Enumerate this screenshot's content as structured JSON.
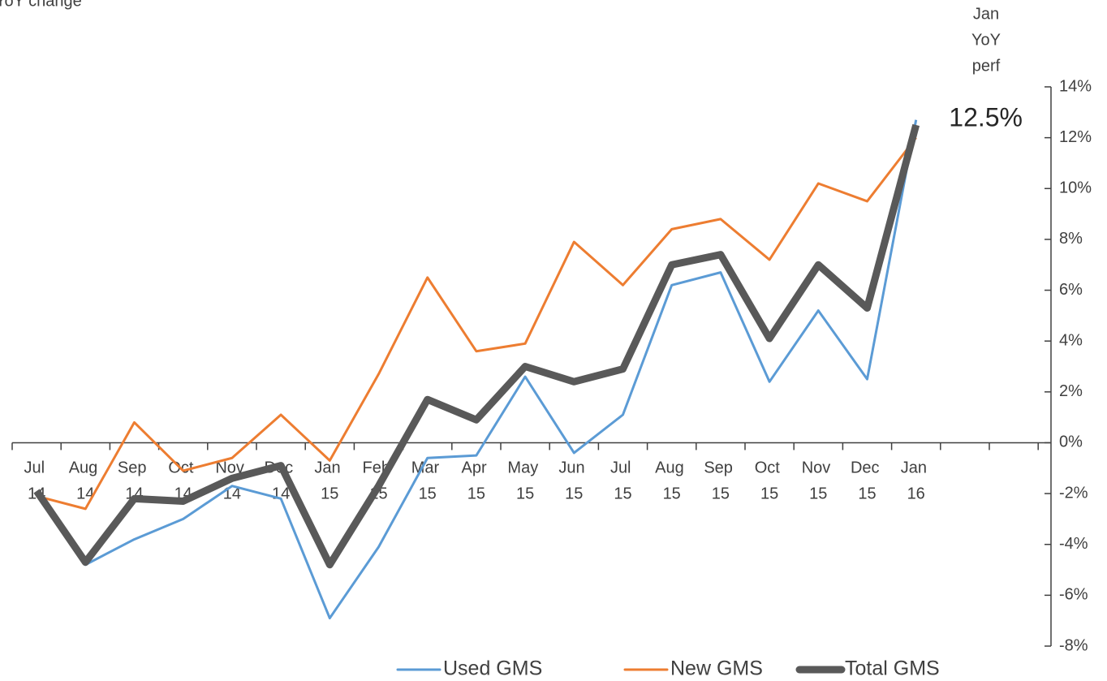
{
  "chart_data": {
    "type": "line",
    "title": "YoY change",
    "annotation_header": [
      "Jan",
      "YoY",
      "perf"
    ],
    "annotation": "12.5%",
    "categories": [
      "Jul 14",
      "Aug 14",
      "Sep 14",
      "Oct 14",
      "Nov 14",
      "Dec 14",
      "Jan 15",
      "Feb 15",
      "Mar 15",
      "Apr 15",
      "May 15",
      "Jun 15",
      "Jul 15",
      "Aug 15",
      "Sep 15",
      "Oct 15",
      "Nov 15",
      "Dec 15",
      "Jan 16"
    ],
    "series": [
      {
        "name": "Used GMS",
        "color": "#5b9bd5",
        "width": 3,
        "values": [
          -2.0,
          -4.8,
          -3.8,
          -3.0,
          -1.7,
          -2.2,
          -6.9,
          -4.1,
          -0.6,
          -0.5,
          2.6,
          -0.4,
          1.1,
          6.2,
          6.7,
          2.4,
          5.2,
          2.5,
          12.7
        ]
      },
      {
        "name": "New GMS",
        "color": "#ed7d31",
        "width": 3,
        "values": [
          -2.1,
          -2.6,
          0.8,
          -1.1,
          -0.6,
          1.1,
          -0.7,
          2.7,
          6.5,
          3.6,
          3.9,
          7.9,
          6.2,
          8.4,
          8.8,
          7.2,
          10.2,
          9.5,
          12.0
        ]
      },
      {
        "name": "Total GMS",
        "color": "#595959",
        "width": 9,
        "values": [
          -1.9,
          -4.7,
          -2.2,
          -2.3,
          -1.4,
          -0.9,
          -4.8,
          -1.7,
          1.7,
          0.9,
          3.0,
          2.4,
          2.9,
          7.0,
          7.4,
          4.1,
          7.0,
          5.3,
          12.5
        ]
      }
    ],
    "ylim": [
      -8,
      14
    ],
    "yticks": [
      {
        "value": -8,
        "label": "-8%"
      },
      {
        "value": -6,
        "label": "-6%"
      },
      {
        "value": -4,
        "label": "-4%"
      },
      {
        "value": -2,
        "label": "-2%"
      },
      {
        "value": 0,
        "label": "0%"
      },
      {
        "value": 2,
        "label": "2%"
      },
      {
        "value": 4,
        "label": "4%"
      },
      {
        "value": 6,
        "label": "6%"
      },
      {
        "value": 8,
        "label": "8%"
      },
      {
        "value": 10,
        "label": "10%"
      },
      {
        "value": 12,
        "label": "12%"
      },
      {
        "value": 14,
        "label": "14%"
      }
    ],
    "y_axis_side": "right",
    "legend": "bottom"
  }
}
